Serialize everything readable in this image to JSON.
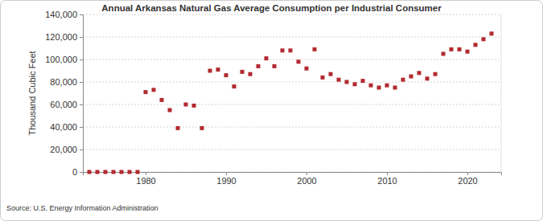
{
  "chart_data": {
    "type": "scatter",
    "title": "Annual Arkansas Natural Gas Average Consumption per Industrial Consumer",
    "y_label": "Thousand Cubic Feet",
    "source": "Source: U.S. Energy Information Administration",
    "x": [
      1973,
      1974,
      1975,
      1976,
      1977,
      1978,
      1979,
      1980,
      1981,
      1982,
      1983,
      1984,
      1985,
      1986,
      1987,
      1988,
      1989,
      1990,
      1991,
      1992,
      1993,
      1994,
      1995,
      1996,
      1997,
      1998,
      1999,
      2000,
      2001,
      2002,
      2003,
      2004,
      2005,
      2006,
      2007,
      2008,
      2009,
      2010,
      2011,
      2012,
      2013,
      2014,
      2015,
      2016,
      2017,
      2018,
      2019,
      2020,
      2021,
      2022,
      2023
    ],
    "values": [
      0,
      0,
      0,
      0,
      0,
      0,
      0,
      71000,
      73000,
      64000,
      55000,
      39000,
      60000,
      59000,
      39000,
      90000,
      91000,
      86000,
      76000,
      89000,
      87000,
      94000,
      101000,
      94000,
      108000,
      108000,
      98000,
      92000,
      109000,
      84000,
      87000,
      82000,
      80000,
      78000,
      81000,
      77000,
      75000,
      77000,
      75000,
      82000,
      85000,
      88000,
      83000,
      87000,
      105000,
      109000,
      109000,
      107000,
      113000,
      118000,
      123000
    ],
    "color": "#b22a2e",
    "marker": "square",
    "xlim": [
      1972.2,
      2024.2
    ],
    "xticks": [
      1980,
      1990,
      2000,
      2010,
      2020
    ],
    "ylim": [
      0,
      140000
    ],
    "yticks": [
      0,
      {
        "value": 20000,
        "label": "20,000"
      },
      {
        "value": 40000,
        "label": "40,000"
      },
      {
        "value": 60000,
        "label": "60,000"
      },
      {
        "value": 80000,
        "label": "80,000"
      },
      {
        "value": 100000,
        "label": "100,000"
      },
      {
        "value": 120000,
        "label": "120,000"
      },
      {
        "value": 140000,
        "label": "140,000"
      }
    ],
    "grid": true
  }
}
